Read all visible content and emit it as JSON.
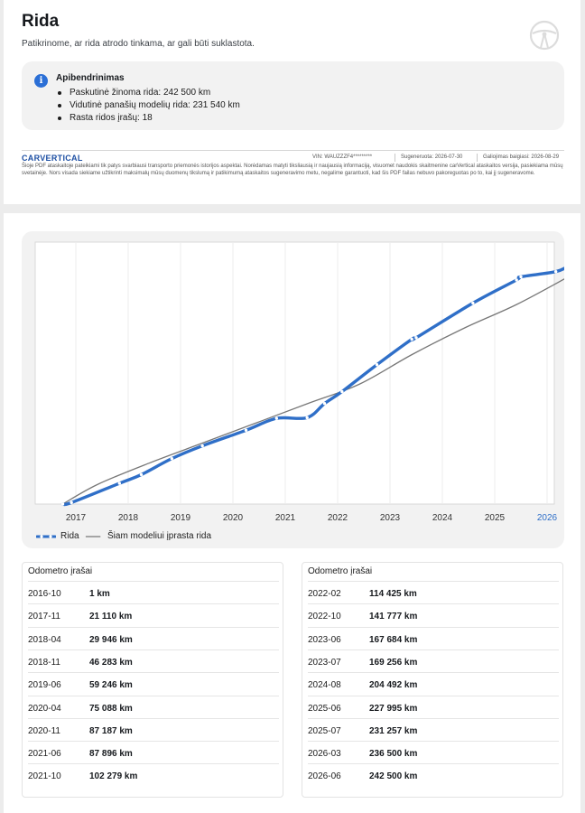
{
  "header": {
    "title": "Rida",
    "subtitle": "Patikrinome, ar rida atrodo tinkama, ar gali būti suklastota."
  },
  "summary": {
    "title": "Apibendrinimas",
    "items": [
      "Paskutinė žinoma rida: 242 500 km",
      "Vidutinė panašių modelių rida: 231 540 km",
      "Rasta ridos įrašų: 18"
    ]
  },
  "footer": {
    "brand": "CARVERTICAL",
    "vin": "VIN: WAUZZZF4*********",
    "generated": "Sugeneruota: 2026-07-30",
    "valid": "Galiojimas baigiasi: 2026-08-29",
    "disclaimer": "Šioje PDF ataskaitoje pateikiami tik patys svarbiausi transporto priemonės istorijos aspektai. Norėdamas matyti tiksliausią ir naujausią informaciją, visuomet naudokis skaitmenine carVertical ataskaitos versija, pasiekiama mūsų svetainėje. Nors visada siekiame užtikrinti maksimalų mūsų duomenų tikslumą ir patikimumą ataskaitos sugeneravimo metu, negalime garantuoti, kad šis PDF failas nebuvo pakoreguotas po to, kai jį sugeneravome."
  },
  "chart_data": {
    "type": "line",
    "x_ticks": [
      "2017",
      "2018",
      "2019",
      "2020",
      "2021",
      "2022",
      "2023",
      "2024",
      "2025",
      "2026"
    ],
    "highlight_tick": "2026",
    "ylim": [
      0,
      250000
    ],
    "grid": true,
    "legend_position": "bottom-left",
    "series": [
      {
        "name": "Rida",
        "color": "#2f6fc8",
        "style": "thick-dotted",
        "points": [
          {
            "x": "2016-10",
            "y": 1
          },
          {
            "x": "2016-12",
            "y": 1500
          },
          {
            "x": "2017-11",
            "y": 21110
          },
          {
            "x": "2018-04",
            "y": 29946
          },
          {
            "x": "2018-11",
            "y": 46283
          },
          {
            "x": "2019-06",
            "y": 59246
          },
          {
            "x": "2020-04",
            "y": 75088
          },
          {
            "x": "2020-11",
            "y": 87187
          },
          {
            "x": "2021-06",
            "y": 87896
          },
          {
            "x": "2021-10",
            "y": 102279
          },
          {
            "x": "2022-02",
            "y": 114425
          },
          {
            "x": "2022-10",
            "y": 141777
          },
          {
            "x": "2023-06",
            "y": 167684
          },
          {
            "x": "2023-07",
            "y": 169256
          },
          {
            "x": "2024-08",
            "y": 204492
          },
          {
            "x": "2025-06",
            "y": 227995
          },
          {
            "x": "2025-07",
            "y": 231257
          },
          {
            "x": "2026-03",
            "y": 236500
          },
          {
            "x": "2026-06",
            "y": 242500
          }
        ]
      },
      {
        "name": "Šiam modeliui įprasta rida",
        "color": "#777777",
        "style": "thin",
        "points": [
          {
            "x": "2016-10",
            "y": 1
          },
          {
            "x": "2017-06",
            "y": 20000
          },
          {
            "x": "2018-06",
            "y": 42000
          },
          {
            "x": "2019-06",
            "y": 62000
          },
          {
            "x": "2020-06",
            "y": 82000
          },
          {
            "x": "2021-06",
            "y": 102000
          },
          {
            "x": "2022-06",
            "y": 122000
          },
          {
            "x": "2023-06",
            "y": 152000
          },
          {
            "x": "2024-06",
            "y": 179000
          },
          {
            "x": "2025-06",
            "y": 203000
          },
          {
            "x": "2026-06",
            "y": 231540
          }
        ]
      }
    ]
  },
  "tables": [
    {
      "title": "Odometro įrašai",
      "rows": [
        {
          "date": "2016-10",
          "value": "1 km"
        },
        {
          "date": "2017-11",
          "value": "21 110 km"
        },
        {
          "date": "2018-04",
          "value": "29 946 km"
        },
        {
          "date": "2018-11",
          "value": "46 283 km"
        },
        {
          "date": "2019-06",
          "value": "59 246 km"
        },
        {
          "date": "2020-04",
          "value": "75 088 km"
        },
        {
          "date": "2020-11",
          "value": "87 187 km"
        },
        {
          "date": "2021-06",
          "value": "87 896 km"
        },
        {
          "date": "2021-10",
          "value": "102 279 km"
        }
      ]
    },
    {
      "title": "Odometro įrašai",
      "rows": [
        {
          "date": "2022-02",
          "value": "114 425 km"
        },
        {
          "date": "2022-10",
          "value": "141 777 km"
        },
        {
          "date": "2023-06",
          "value": "167 684 km"
        },
        {
          "date": "2023-07",
          "value": "169 256 km"
        },
        {
          "date": "2024-08",
          "value": "204 492 km"
        },
        {
          "date": "2025-06",
          "value": "227 995 km"
        },
        {
          "date": "2025-07",
          "value": "231 257 km"
        },
        {
          "date": "2026-03",
          "value": "236 500 km"
        },
        {
          "date": "2026-06",
          "value": "242 500 km"
        }
      ]
    }
  ]
}
